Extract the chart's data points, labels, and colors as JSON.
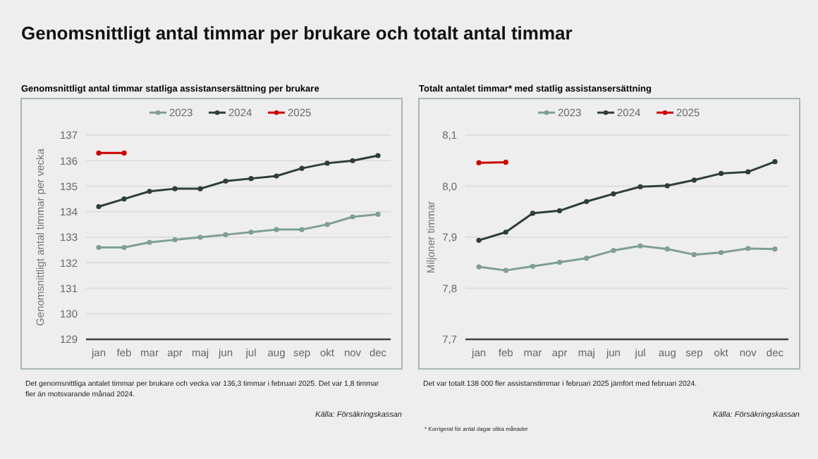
{
  "chart_data": [
    {
      "type": "line",
      "title": "Genomsnittligt antal timmar per brukare och totalt antal timmar",
      "subtitle": "Genomsnittligt antal timmar statliga assistansersättning per brukare",
      "ylabel": "Genomsnittligt antal timmar per vecka",
      "categories": [
        "jan",
        "feb",
        "mar",
        "apr",
        "maj",
        "jun",
        "jul",
        "aug",
        "sep",
        "okt",
        "nov",
        "dec"
      ],
      "series": [
        {
          "name": "2023",
          "color": "#7f9f8f",
          "values": [
            132.6,
            132.6,
            132.8,
            132.9,
            133.0,
            133.1,
            133.2,
            133.3,
            133.3,
            133.5,
            133.8,
            133.9
          ]
        },
        {
          "name": "2024",
          "color": "#2d3e36",
          "values": [
            134.2,
            134.5,
            134.8,
            134.9,
            134.9,
            135.2,
            135.3,
            135.4,
            135.7,
            135.9,
            136.0,
            136.2
          ]
        },
        {
          "name": "2025",
          "color": "#cc0000",
          "values": [
            136.3,
            136.3,
            null,
            null,
            null,
            null,
            null,
            null,
            null,
            null,
            null,
            null
          ]
        }
      ],
      "ylim": [
        129,
        137
      ],
      "yticks": [
        129,
        130,
        131,
        132,
        133,
        134,
        135,
        136,
        137
      ],
      "grid": "y",
      "legend": "top",
      "marker": "circle",
      "annotations": [
        "Det genomsnittliga antalet timmar per brukare och vecka var 136,3 timmar i februari 2025. Det var 1,8 timmar fler än motsvarande månad 2024.",
        "Källa: Försäkringskassan"
      ]
    },
    {
      "type": "line",
      "title": "Totalt antalet timmar* med statlig assistansersättning",
      "ylabel": "Miljoner timmar",
      "categories": [
        "jan",
        "feb",
        "mar",
        "apr",
        "maj",
        "jun",
        "jul",
        "aug",
        "sep",
        "okt",
        "nov",
        "dec"
      ],
      "series": [
        {
          "name": "2023",
          "color": "#7f9f8f",
          "values": [
            7.842,
            7.835,
            7.843,
            7.851,
            7.859,
            7.874,
            7.883,
            7.877,
            7.866,
            7.87,
            7.878,
            7.877
          ]
        },
        {
          "name": "2024",
          "color": "#2d3e36",
          "values": [
            7.894,
            7.91,
            7.947,
            7.952,
            7.97,
            7.985,
            7.999,
            8.001,
            8.012,
            8.025,
            8.028,
            8.048
          ]
        },
        {
          "name": "2025",
          "color": "#cc0000",
          "values": [
            8.046,
            8.047,
            null,
            null,
            null,
            null,
            null,
            null,
            null,
            null,
            null,
            null
          ]
        }
      ],
      "ylim": [
        7.7,
        8.1
      ],
      "yticks": [
        {
          "value": 7.7,
          "label": "7,7"
        },
        {
          "value": 7.8,
          "label": "7,8"
        },
        {
          "value": 7.9,
          "label": "7,9"
        },
        {
          "value": 8.0,
          "label": "8,0"
        },
        {
          "value": 8.1,
          "label": "8,1"
        }
      ],
      "grid": "y",
      "legend": "top",
      "marker": "circle",
      "annotations": [
        "Det var totalt 138 000 fler assistanstimmar i februari 2025 jämfört med februari 2024.",
        "Källa: Försäkringskassan",
        "* Korrigerat för antal dagar olika månader"
      ]
    }
  ]
}
